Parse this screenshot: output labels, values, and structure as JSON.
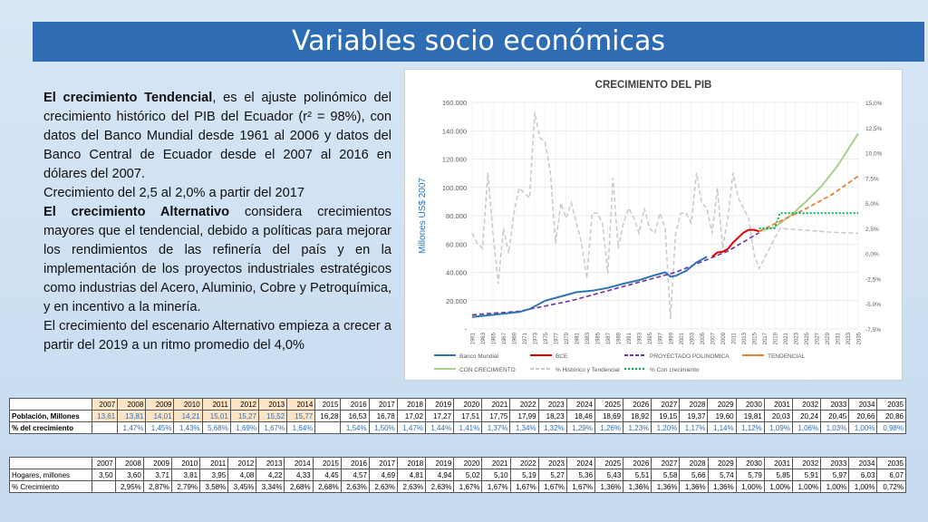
{
  "title": "Variables socio económicas",
  "text": {
    "p1_bold": "El crecimiento Tendencial",
    "p1_rest": ", es el ajuste polinómico del crecimiento histórico del PIB del Ecuador (r² = 98%), con datos del Banco Mundial desde 1961 al 2006 y datos del Banco Central de Ecuador desde el 2007 al 2016 en dólares del 2007.",
    "p2": "Crecimiento del 2,5 al 2,0% a partir del 2017",
    "p3_bold": "El crecimiento Alternativo",
    "p3_rest": " considera crecimientos mayores que el tendencial, debido a políticas para mejorar los rendimientos de las refinería del país y en la implementación de los proyectos industriales estratégicos como industrias del Acero, Aluminio, Cobre y Petroquímica, y en incentivo a la minería.",
    "p4": "El crecimiento del escenario Alternativo empieza a crecer a partir del 2019 a un ritmo promedio del 4,0%"
  },
  "chart_data": {
    "type": "line",
    "title": "CRECIMIENTO DEL PIB",
    "ylabel": "Millones US$ 2007",
    "ylim": [
      0,
      160000
    ],
    "y2lim": [
      -7.5,
      15.0
    ],
    "yticks": [
      "-",
      "20.000",
      "40.000",
      "60.000",
      "80.000",
      "100.000",
      "120.000",
      "140.000",
      "160.000"
    ],
    "y2ticks": [
      "-7,5%",
      "-5,0%",
      "-2,5%",
      "0,0%",
      "2,5%",
      "5,0%",
      "7,5%",
      "10,0%",
      "12,5%",
      "15,0%"
    ],
    "xticks": [
      "1961",
      "1963",
      "1965",
      "1967",
      "1969",
      "1971",
      "1973",
      "1975",
      "1977",
      "1979",
      "1981",
      "1983",
      "1985",
      "1987",
      "1989",
      "1991",
      "1993",
      "1995",
      "1997",
      "1999",
      "2001",
      "2003",
      "2005",
      "2007",
      "2009",
      "2011",
      "2013",
      "2015",
      "2017",
      "2019",
      "2021",
      "2023",
      "2025",
      "2027",
      "2029",
      "2031",
      "2033",
      "2035"
    ],
    "legend": [
      "Banco Mundial",
      "BCE",
      "PROYECTADO POLINOMICA",
      "TENDENCIAL",
      "CON CRECIMIENTO",
      "% Histórico y Tendencial",
      "% Con crecimiento"
    ],
    "colors": {
      "banco_mundial": "#2e75b6",
      "bce": "#e00000",
      "polinomica": "#7030a0",
      "tendencial": "#ed7d31",
      "con_crecimiento": "#a9d18e",
      "pct_hist": "#c8c8c8",
      "pct_con": "#00b050"
    },
    "series": [
      {
        "name": "Banco Mundial",
        "x": [
          1961,
          1965,
          1970,
          1972,
          1975,
          1978,
          1981,
          1984,
          1987,
          1990,
          1993,
          1996,
          1998,
          1999,
          2000,
          2002,
          2004,
          2006
        ],
        "values": [
          8500,
          10000,
          12000,
          14000,
          20000,
          23000,
          26000,
          27000,
          29000,
          32000,
          34500,
          38000,
          40000,
          37000,
          37500,
          41000,
          47000,
          51000
        ]
      },
      {
        "name": "BCE",
        "x": [
          2007,
          2008,
          2009,
          2010,
          2011,
          2012,
          2013,
          2014,
          2015,
          2016
        ],
        "values": [
          51000,
          54000,
          54500,
          56500,
          61000,
          64500,
          68000,
          70000,
          70000,
          69000
        ]
      },
      {
        "name": "PROYECTADO POLINOMICA",
        "x": [
          1961,
          1970,
          1980,
          1990,
          2000,
          2010,
          2016
        ],
        "values": [
          10000,
          12500,
          20000,
          30000,
          40000,
          55000,
          68000
        ]
      },
      {
        "name": "TENDENCIAL",
        "x": [
          2016,
          2020,
          2025,
          2030,
          2035
        ],
        "values": [
          69000,
          76000,
          85000,
          95000,
          108000
        ]
      },
      {
        "name": "CON CRECIMIENTO",
        "x": [
          2016,
          2019,
          2022,
          2025,
          2028,
          2031,
          2035
        ],
        "values": [
          69000,
          72000,
          80000,
          90000,
          101000,
          115000,
          138000
        ]
      },
      {
        "name": "% Histórico y Tendencial",
        "axis": "right",
        "x": [
          1961,
          1962,
          1963,
          1964,
          1965,
          1966,
          1967,
          1968,
          1969,
          1970,
          1971,
          1972,
          1973,
          1974,
          1975,
          1976,
          1977,
          1978,
          1979,
          1980,
          1981,
          1982,
          1983,
          1984,
          1985,
          1986,
          1987,
          1988,
          1989,
          1990,
          1991,
          1992,
          1993,
          1994,
          1995,
          1996,
          1997,
          1998,
          1999,
          2000,
          2001,
          2002,
          2003,
          2004,
          2005,
          2006,
          2007,
          2008,
          2009,
          2010,
          2011,
          2012,
          2013,
          2014,
          2015,
          2016,
          2020,
          2025,
          2030,
          2035
        ],
        "values": [
          2.0,
          1.0,
          0.5,
          8.0,
          2.0,
          -3.0,
          2.5,
          0.0,
          4.0,
          6.5,
          6.0,
          5.5,
          14.0,
          11.5,
          11.0,
          8.0,
          1.0,
          5.0,
          3.5,
          5.0,
          3.0,
          1.0,
          -2.5,
          4.0,
          4.0,
          3.0,
          -2.0,
          7.5,
          0.5,
          3.0,
          4.5,
          3.5,
          2.0,
          4.5,
          2.5,
          2.0,
          4.0,
          2.5,
          -6.5,
          2.0,
          4.0,
          4.0,
          3.0,
          8.0,
          5.0,
          4.5,
          2.0,
          6.5,
          0.5,
          3.5,
          8.0,
          5.5,
          4.5,
          3.5,
          0.0,
          -1.5,
          2.5,
          2.3,
          2.1,
          2.0
        ]
      },
      {
        "name": "% Con crecimiento",
        "axis": "right",
        "x": [
          2016,
          2019,
          2020,
          2035
        ],
        "values": [
          2.5,
          2.5,
          4.0,
          4.0
        ]
      }
    ]
  },
  "table1": {
    "years": [
      "2007",
      "2008",
      "2009",
      "2010",
      "2011",
      "2012",
      "2013",
      "2014",
      "2015",
      "2016",
      "2017",
      "2018",
      "2019",
      "2020",
      "2021",
      "2022",
      "2023",
      "2024",
      "2025",
      "2026",
      "2027",
      "2028",
      "2029",
      "2030",
      "2031",
      "2032",
      "2033",
      "2034",
      "2035"
    ],
    "row1_label": "Población, Millones",
    "row1": [
      "13,61",
      "13,81",
      "14,01",
      "14,21",
      "15,01",
      "15,27",
      "15,52",
      "15,77",
      "16,28",
      "16,53",
      "16,78",
      "17,02",
      "17,27",
      "17,51",
      "17,75",
      "17,99",
      "18,23",
      "18,46",
      "18,69",
      "18,92",
      "19,15",
      "19,37",
      "19,60",
      "19,81",
      "20,03",
      "20,24",
      "20,45",
      "20,66",
      "20,86"
    ],
    "row2_label": "% del crecimiento",
    "row2": [
      "",
      "1,47%",
      "1,45%",
      "1,43%",
      "5,68%",
      "1,69%",
      "1,67%",
      "1,64%",
      "",
      "1,54%",
      "1,50%",
      "1,47%",
      "1,44%",
      "1,41%",
      "1,37%",
      "1,34%",
      "1,32%",
      "1,29%",
      "1,26%",
      "1,23%",
      "1,20%",
      "1,17%",
      "1,14%",
      "1,12%",
      "1,09%",
      "1,06%",
      "1,03%",
      "1,00%",
      "0,98%"
    ]
  },
  "table2": {
    "years": [
      "2007",
      "2008",
      "2009",
      "2010",
      "2011",
      "2012",
      "2013",
      "2014",
      "2015",
      "2016",
      "2017",
      "2018",
      "2019",
      "2020",
      "2021",
      "2022",
      "2023",
      "2024",
      "2025",
      "2026",
      "2027",
      "2028",
      "2029",
      "2030",
      "2031",
      "2032",
      "2033",
      "2034",
      "2035"
    ],
    "row1_label": "Hogares, millones",
    "row1": [
      "3,50",
      "3,60",
      "3,71",
      "3,81",
      "3,95",
      "4,08",
      "4,22",
      "4,33",
      "4,45",
      "4,57",
      "4,69",
      "4,81",
      "4,94",
      "5,02",
      "5,10",
      "5,19",
      "5,27",
      "5,36",
      "5,43",
      "5,51",
      "5,58",
      "5,66",
      "5,74",
      "5,79",
      "5,85",
      "5,91",
      "5,97",
      "6,03",
      "6,07"
    ],
    "row2_label": "% Crecimiento",
    "row2": [
      "",
      "2,95%",
      "2,87%",
      "2,79%",
      "3,58%",
      "3,45%",
      "3,34%",
      "2,68%",
      "2,68%",
      "2,63%",
      "2,63%",
      "2,63%",
      "2,63%",
      "1,67%",
      "1,67%",
      "1,67%",
      "1,67%",
      "1,67%",
      "1,36%",
      "1,36%",
      "1,36%",
      "1,36%",
      "1,36%",
      "1,00%",
      "1,00%",
      "1,00%",
      "1,00%",
      "1,00%",
      "0,72%"
    ]
  }
}
